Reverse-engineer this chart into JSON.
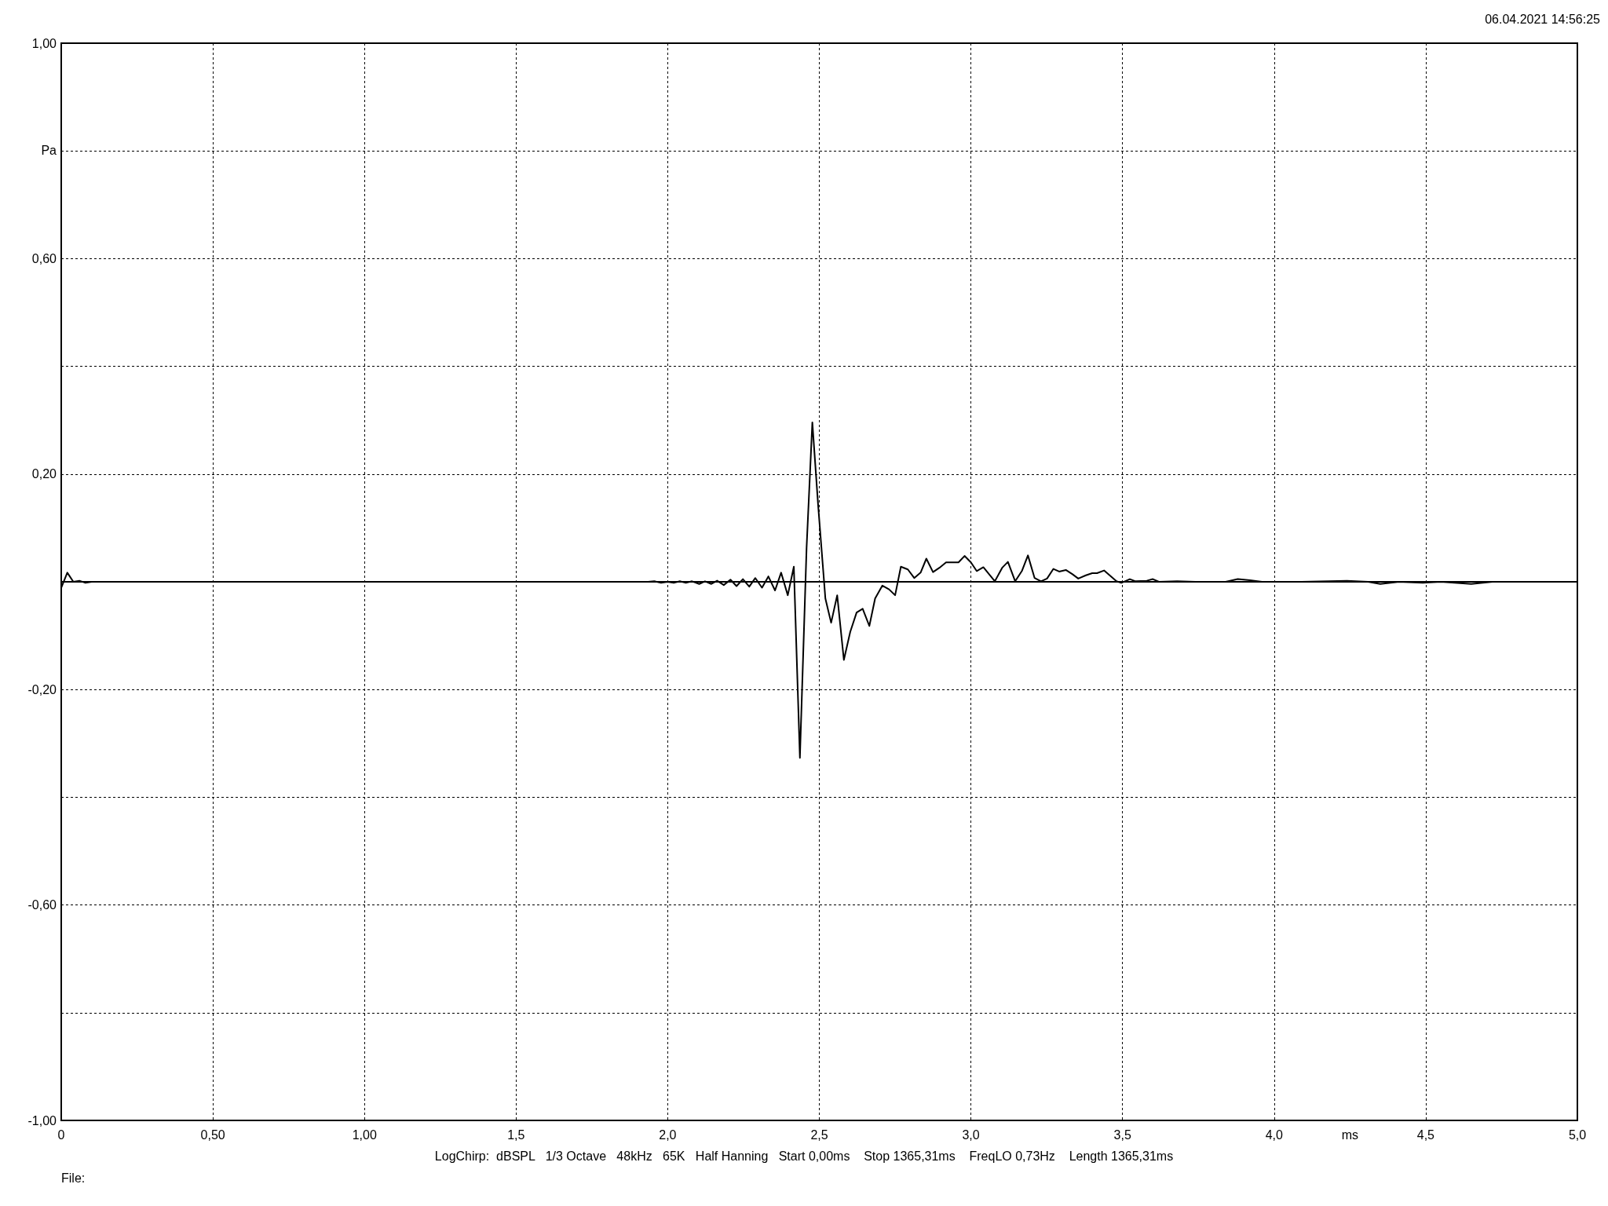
{
  "chart_data": {
    "type": "line",
    "xlabel": "ms",
    "ylabel": "Pa",
    "annotations": [
      "06.04.2021 14:56:25",
      "LogChirp:  dBSPL   1/3 Octave   48kHz   65K   Half Hanning   Start 0,00ms    Stop 1365,31ms    FreqLO 0,73Hz    Length 1365,31ms",
      "File:"
    ],
    "xlim": [
      0,
      5
    ],
    "ylim": [
      -1,
      1
    ],
    "xticks": [
      0,
      {
        "value": 0.5,
        "label": "0,50"
      },
      {
        "value": 1,
        "label": "1,00"
      },
      {
        "value": 1.5,
        "label": "1,5"
      },
      {
        "value": 2,
        "label": "2,0"
      },
      {
        "value": 2.5,
        "label": "2,5"
      },
      {
        "value": 3,
        "label": "3,0"
      },
      {
        "value": 3.5,
        "label": "3,5"
      },
      {
        "value": 4,
        "label": "4,0"
      },
      {
        "value": 4.5,
        "label": "4,5"
      },
      {
        "value": 5,
        "label": "5,0"
      }
    ],
    "yticks": [
      {
        "value": -1,
        "label": "-1,00"
      },
      {
        "value": -0.8,
        "label": null
      },
      {
        "value": -0.6,
        "label": "-0,60"
      },
      {
        "value": -0.4,
        "label": null
      },
      {
        "value": -0.2,
        "label": "-0,20"
      },
      {
        "value": 0,
        "label": null
      },
      {
        "value": 0.2,
        "label": "0,20"
      },
      {
        "value": 0.4,
        "label": null
      },
      {
        "value": 0.6,
        "label": "0,60"
      },
      {
        "value": 0.8,
        "label": null
      },
      {
        "value": 1,
        "label": "1,00"
      }
    ],
    "grid": true,
    "marker": "none",
    "line_style": "solid",
    "series": [
      {
        "color": "#000000",
        "x": [
          0,
          0.02,
          0.04,
          0.06,
          0.08,
          0.1,
          1.935,
          1.956,
          1.978,
          2.0,
          2.02,
          2.04,
          2.06,
          2.08,
          2.104,
          2.123,
          2.144,
          2.163,
          2.185,
          2.207,
          2.227,
          2.248,
          2.269,
          2.289,
          2.311,
          2.332,
          2.354,
          2.374,
          2.396,
          2.416,
          2.436,
          2.458,
          2.477,
          2.496,
          2.52,
          2.539,
          2.559,
          2.581,
          2.602,
          2.623,
          2.643,
          2.665,
          2.684,
          2.708,
          2.73,
          2.75,
          2.769,
          2.792,
          2.813,
          2.834,
          2.853,
          2.875,
          2.896,
          2.918,
          2.959,
          2.979,
          3.0,
          3.019,
          3.041,
          3.079,
          3.103,
          3.122,
          3.146,
          3.168,
          3.188,
          3.21,
          3.231,
          3.251,
          3.272,
          3.291,
          3.313,
          3.335,
          3.354,
          3.379,
          3.4,
          3.416,
          3.439,
          3.48,
          3.496,
          3.524,
          3.543,
          3.58,
          3.6,
          3.62,
          3.68,
          3.74,
          3.84,
          3.88,
          3.92,
          3.96,
          4.02,
          4.09,
          4.24,
          4.31,
          4.35,
          4.41,
          4.49,
          4.55,
          4.65,
          4.72,
          4.77,
          5.0
        ],
        "values": [
          -0.011,
          0.017,
          0,
          0.002,
          -0.002,
          0,
          0,
          0.001,
          -0.002,
          0,
          -0.002,
          0.001,
          -0.002,
          0.001,
          -0.004,
          0.001,
          -0.004,
          0.002,
          -0.006,
          0.004,
          -0.008,
          0.005,
          -0.009,
          0.007,
          -0.011,
          0.01,
          -0.016,
          0.017,
          -0.025,
          0.028,
          -0.327,
          0.063,
          0.296,
          0.143,
          -0.031,
          -0.076,
          -0.025,
          -0.145,
          -0.093,
          -0.057,
          -0.05,
          -0.082,
          -0.031,
          -0.007,
          -0.014,
          -0.025,
          0.028,
          0.023,
          0.007,
          0.017,
          0.043,
          0.018,
          0.026,
          0.036,
          0.036,
          0.048,
          0.036,
          0.02,
          0.027,
          0.001,
          0.026,
          0.037,
          0.001,
          0.02,
          0.049,
          0.007,
          0.001,
          0.006,
          0.024,
          0.019,
          0.022,
          0.014,
          0.006,
          0.012,
          0.016,
          0.016,
          0.021,
          0.001,
          -0.002,
          0.005,
          0.001,
          0.002,
          0.005,
          0,
          0.001,
          0,
          0,
          0.005,
          0.003,
          0,
          0,
          0,
          0.002,
          0,
          -0.004,
          0,
          -0.002,
          0,
          -0.004,
          0,
          0,
          0
        ]
      }
    ]
  }
}
